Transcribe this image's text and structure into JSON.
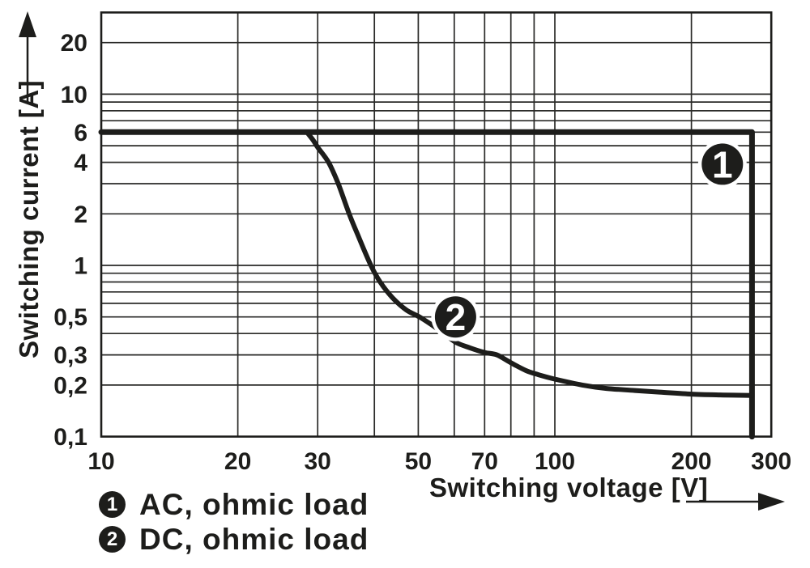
{
  "figure": {
    "background": "#ffffff",
    "ink": "#1d1d1b"
  },
  "chart_data": {
    "type": "line",
    "title": "",
    "x_axis": {
      "label": "Switching voltage [V]",
      "scale": "log",
      "min": 10,
      "max": 300,
      "ticks": [
        {
          "v": 10,
          "label": "10"
        },
        {
          "v": 20,
          "label": "20"
        },
        {
          "v": 30,
          "label": "30"
        },
        {
          "v": 50,
          "label": "50"
        },
        {
          "v": 70,
          "label": "70"
        },
        {
          "v": 100,
          "label": "100"
        },
        {
          "v": 200,
          "label": "200"
        },
        {
          "v": 300,
          "label": "300"
        }
      ],
      "gridlines": [
        10,
        20,
        30,
        40,
        50,
        60,
        70,
        80,
        90,
        100,
        200,
        300
      ]
    },
    "y_axis": {
      "label": "Switching current [A]",
      "scale": "log",
      "min": 0.1,
      "max": 30,
      "ticks": [
        {
          "v": 20,
          "label": "20"
        },
        {
          "v": 10,
          "label": "10"
        },
        {
          "v": 6,
          "label": "6"
        },
        {
          "v": 4,
          "label": "4"
        },
        {
          "v": 2,
          "label": "2"
        },
        {
          "v": 1,
          "label": "1"
        },
        {
          "v": 0.5,
          "label": "0,5"
        },
        {
          "v": 0.3,
          "label": "0,3"
        },
        {
          "v": 0.2,
          "label": "0,2"
        },
        {
          "v": 0.1,
          "label": "0,1"
        }
      ],
      "gridlines": [
        0.1,
        0.2,
        0.3,
        0.4,
        0.5,
        0.6,
        0.7,
        0.8,
        0.9,
        1,
        2,
        3,
        4,
        5,
        6,
        7,
        8,
        9,
        10,
        20,
        30
      ]
    },
    "series": [
      {
        "key": "ac",
        "marker": "1",
        "name": "AC, ohmic load",
        "smooth": false,
        "points": [
          [
            10,
            6
          ],
          [
            272,
            6
          ],
          [
            272,
            0.1
          ]
        ]
      },
      {
        "key": "dc",
        "marker": "2",
        "name": "DC, ohmic load",
        "smooth": true,
        "points": [
          [
            28.4,
            6
          ],
          [
            29.3,
            5.4
          ],
          [
            30,
            4.9
          ],
          [
            31.7,
            4
          ],
          [
            33.3,
            3
          ],
          [
            35.2,
            2
          ],
          [
            36.8,
            1.5
          ],
          [
            39.3,
            1
          ],
          [
            41.2,
            0.8
          ],
          [
            43.8,
            0.65
          ],
          [
            47,
            0.55
          ],
          [
            50.3,
            0.5
          ],
          [
            53.5,
            0.45
          ],
          [
            57,
            0.4
          ],
          [
            60.5,
            0.355
          ],
          [
            65,
            0.33
          ],
          [
            70,
            0.31
          ],
          [
            74.5,
            0.3
          ],
          [
            80,
            0.27
          ],
          [
            86.4,
            0.243
          ],
          [
            92,
            0.23
          ],
          [
            99,
            0.218
          ],
          [
            115,
            0.2
          ],
          [
            130,
            0.191
          ],
          [
            150,
            0.186
          ],
          [
            170,
            0.182
          ],
          [
            200,
            0.177
          ],
          [
            235,
            0.175
          ],
          [
            272,
            0.174
          ]
        ]
      }
    ],
    "markers": [
      {
        "label": "1",
        "v": 234,
        "a": 3.9
      },
      {
        "label": "2",
        "v": 60.4,
        "a": 0.5
      }
    ]
  },
  "legend": {
    "items": [
      {
        "num": "1",
        "label": "AC, ohmic load"
      },
      {
        "num": "2",
        "label": "DC, ohmic load"
      }
    ]
  }
}
